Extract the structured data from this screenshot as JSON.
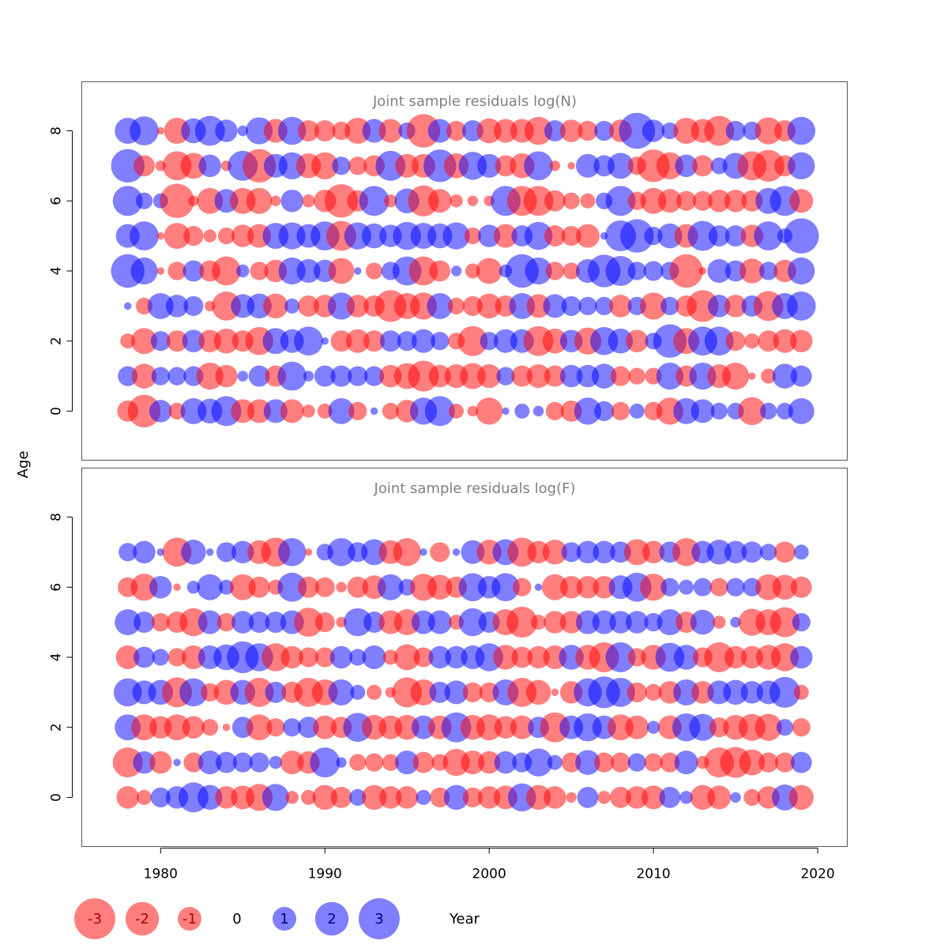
{
  "colors": {
    "negative": "#ff0000",
    "positive": "#0000ff",
    "opacity": 0.5,
    "frame": "#555555"
  },
  "chart_data": [
    {
      "type": "bubble",
      "title": "Joint sample residuals log(N)",
      "xlabel": "Year",
      "ylabel": "Age",
      "xlim": [
        1975.2,
        2021.8
      ],
      "ylim": [
        -1.4,
        9.4
      ],
      "yticks": [
        0,
        2,
        4,
        6,
        8
      ],
      "years": [
        1978,
        1979,
        1980,
        1981,
        1982,
        1983,
        1984,
        1985,
        1986,
        1987,
        1988,
        1989,
        1990,
        1991,
        1992,
        1993,
        1994,
        1995,
        1996,
        1997,
        1998,
        1999,
        2000,
        2001,
        2002,
        2003,
        2004,
        2005,
        2006,
        2007,
        2008,
        2009,
        2010,
        2011,
        2012,
        2013,
        2014,
        2015,
        2016,
        2017,
        2018,
        2019
      ],
      "residuals": [
        {
          "age": 8,
          "values": [
            1.2,
            1.5,
            -0.1,
            -1.2,
            1.1,
            1.6,
            0.9,
            0.2,
            1.3,
            -1.0,
            1.4,
            -0.8,
            -0.8,
            -0.6,
            -1.2,
            1.0,
            -1.0,
            0.5,
            -2.0,
            1.0,
            -0.7,
            0.8,
            -1.1,
            -1.0,
            -1.0,
            -1.4,
            0.8,
            -0.9,
            -0.7,
            0.7,
            -0.9,
            2.3,
            0.9,
            0.5,
            -1.2,
            -1.0,
            -1.6,
            0.7,
            0.6,
            -1.3,
            -0.8,
            1.4
          ]
        },
        {
          "age": 7,
          "values": [
            2.0,
            -0.8,
            -0.2,
            -1.5,
            -1.2,
            0.9,
            -0.2,
            1.6,
            -2.0,
            1.0,
            1.3,
            -1.1,
            -1.3,
            0.6,
            -0.6,
            -0.8,
            1.6,
            -1.0,
            -1.0,
            1.9,
            -1.1,
            1.4,
            1.0,
            -0.8,
            -1.1,
            1.5,
            -0.2,
            -0.1,
            1.0,
            0.8,
            1.2,
            -0.6,
            -1.9,
            -1.3,
            0.9,
            -0.8,
            0.5,
            1.2,
            -1.5,
            -1.8,
            -0.8,
            1.3
          ]
        },
        {
          "age": 6,
          "values": [
            1.6,
            0.5,
            0.4,
            -2.1,
            -0.2,
            -1.2,
            1.0,
            -1.2,
            -1.2,
            -0.2,
            0.9,
            -0.3,
            -0.9,
            -2.0,
            -0.8,
            1.6,
            -0.3,
            1.1,
            -1.7,
            -1.0,
            -0.3,
            -0.2,
            -0.2,
            1.6,
            -1.6,
            -1.6,
            -0.8,
            -0.5,
            -0.4,
            0.5,
            1.6,
            -0.6,
            -1.2,
            -1.0,
            -0.7,
            -0.7,
            -0.9,
            -0.9,
            -0.8,
            1.2,
            1.6,
            -1.0
          ]
        },
        {
          "age": 5,
          "values": [
            1.0,
            1.5,
            -0.1,
            -1.2,
            -0.7,
            -0.3,
            -0.5,
            -0.9,
            -1.0,
            1.2,
            1.3,
            1.0,
            1.5,
            -1.6,
            1.3,
            1.1,
            0.9,
            1.4,
            1.2,
            1.1,
            1.3,
            -0.5,
            0.9,
            -1.0,
            0.8,
            1.4,
            -0.8,
            -0.7,
            -1.0,
            0.1,
            1.7,
            2.0,
            0.6,
            1.1,
            -1.0,
            1.6,
            0.8,
            0.8,
            -0.9,
            1.5,
            0.4,
            2.2
          ]
        },
        {
          "age": 4,
          "values": [
            2.0,
            1.3,
            -0.1,
            -0.6,
            0.8,
            -0.8,
            -1.5,
            0.3,
            -0.6,
            -0.9,
            1.3,
            1.0,
            0.9,
            -1.2,
            0.1,
            -0.5,
            0.6,
            1.5,
            -1.5,
            -0.8,
            0.2,
            -0.4,
            -1.2,
            0.3,
            2.0,
            1.3,
            -0.6,
            -0.5,
            1.0,
            1.9,
            1.6,
            0.6,
            0.7,
            0.6,
            -2.0,
            -0.1,
            1.0,
            0.8,
            -1.1,
            0.6,
            -0.9,
            1.3
          ]
        },
        {
          "age": 3,
          "values": [
            0.1,
            -0.5,
            1.2,
            0.9,
            0.7,
            -0.2,
            -1.5,
            1.0,
            1.1,
            -1.1,
            0.4,
            -0.8,
            -0.9,
            1.3,
            -0.9,
            -0.8,
            -1.8,
            -1.2,
            -1.3,
            1.2,
            -0.5,
            -0.7,
            -1.1,
            -0.8,
            1.2,
            -1.0,
            1.0,
            0.7,
            0.6,
            0.6,
            -0.9,
            0.6,
            -1.3,
            0.6,
            -0.8,
            -1.8,
            0.9,
            -0.9,
            0.8,
            -1.6,
            1.2,
            1.5
          ]
        },
        {
          "age": 2,
          "values": [
            -0.4,
            -1.2,
            0.7,
            -0.8,
            0.9,
            -0.9,
            -1.1,
            -0.8,
            -1.4,
            1.2,
            1.0,
            1.5,
            0.1,
            -0.8,
            -1.0,
            -0.8,
            0.8,
            0.7,
            1.0,
            0.6,
            -0.5,
            -1.6,
            0.6,
            1.0,
            1.0,
            -1.6,
            -1.1,
            0.9,
            -1.3,
            1.4,
            1.1,
            -0.9,
            0.5,
            2.0,
            -1.2,
            1.5,
            1.5,
            -0.7,
            -0.4,
            -0.8,
            -1.0,
            -0.9
          ]
        },
        {
          "age": 1,
          "values": [
            0.7,
            -1.1,
            0.6,
            0.6,
            0.7,
            -1.3,
            -0.9,
            0.2,
            0.8,
            -0.8,
            1.5,
            0.2,
            0.8,
            0.8,
            0.7,
            0.7,
            -0.9,
            -1.2,
            -1.7,
            -0.9,
            -1.0,
            -1.2,
            -1.0,
            0.6,
            -0.8,
            -1.0,
            -0.8,
            0.9,
            0.9,
            1.1,
            -0.7,
            -0.5,
            -0.5,
            1.3,
            -0.8,
            1.3,
            -1.0,
            -1.3,
            -0.1,
            -0.4,
            1.1,
            0.8
          ]
        },
        {
          "age": 0,
          "values": [
            -0.8,
            -1.9,
            0.9,
            -0.5,
            1.2,
            1.1,
            1.6,
            -1.0,
            -1.0,
            1.0,
            -1.0,
            -0.3,
            -0.4,
            1.2,
            -0.6,
            0.1,
            -0.5,
            -0.9,
            1.3,
            1.6,
            -0.4,
            -0.2,
            -1.3,
            0.1,
            0.4,
            0.2,
            -0.6,
            -0.8,
            1.3,
            0.7,
            -0.6,
            0.4,
            -0.6,
            -1.3,
            1.2,
            1.0,
            0.5,
            0.5,
            -1.4,
            0.5,
            0.5,
            1.2
          ]
        }
      ]
    },
    {
      "type": "bubble",
      "title": "Joint sample residuals log(F)",
      "xlabel": "Year",
      "ylabel": "Age",
      "xlim": [
        1975.2,
        2021.8
      ],
      "ylim": [
        -1.4,
        9.4
      ],
      "yticks": [
        0,
        2,
        4,
        6,
        8
      ],
      "xticks": [
        1980,
        1990,
        2000,
        2010,
        2020
      ],
      "years": [
        1978,
        1979,
        1980,
        1981,
        1982,
        1983,
        1984,
        1985,
        1986,
        1987,
        1988,
        1989,
        1990,
        1991,
        1992,
        1993,
        1994,
        1995,
        1996,
        1997,
        1998,
        1999,
        2000,
        2001,
        2002,
        2003,
        2004,
        2005,
        2006,
        2007,
        2008,
        2009,
        2010,
        2011,
        2012,
        2013,
        2014,
        2015,
        2016,
        2017,
        2018,
        2019
      ],
      "residuals": [
        {
          "age": 7,
          "values": [
            0.6,
            0.9,
            0.1,
            -1.5,
            1.1,
            0.1,
            0.7,
            0.9,
            -1.0,
            -1.5,
            1.4,
            -0.1,
            0.5,
            1.4,
            0.7,
            1.2,
            -1.0,
            -1.4,
            0.1,
            -0.7,
            0.1,
            1.0,
            -1.1,
            1.2,
            -1.5,
            -0.9,
            -1.1,
            0.7,
            0.9,
            0.9,
            0.8,
            -1.2,
            -0.9,
            0.8,
            -1.4,
            0.9,
            1.1,
            0.9,
            0.8,
            0.5,
            -0.8,
            0.4
          ]
        },
        {
          "age": 6,
          "values": [
            -0.7,
            -1.3,
            0.9,
            -0.1,
            0.3,
            1.2,
            0.4,
            -1.2,
            -0.8,
            -0.4,
            1.5,
            -0.8,
            -0.7,
            -0.2,
            -0.8,
            -1.0,
            1.2,
            0.5,
            -1.3,
            -1.1,
            -0.8,
            1.4,
            0.9,
            1.4,
            -0.6,
            0.1,
            -1.2,
            -0.9,
            -0.9,
            -0.9,
            1.0,
            1.5,
            -1.3,
            0.6,
            0.4,
            0.6,
            -0.6,
            0.6,
            0.6,
            -1.2,
            -1.1,
            -0.8
          ]
        },
        {
          "age": 5,
          "values": [
            1.2,
            0.8,
            -0.6,
            -0.8,
            -1.4,
            1.0,
            -0.6,
            0.9,
            0.8,
            0.8,
            1.0,
            -1.5,
            -0.7,
            -0.2,
            1.4,
            0.8,
            -1.0,
            -1.2,
            1.0,
            1.0,
            -0.4,
            1.4,
            0.8,
            -1.2,
            -1.7,
            -0.4,
            -0.9,
            -0.9,
            1.0,
            1.0,
            0.9,
            0.9,
            0.6,
            1.2,
            -0.8,
            1.1,
            -0.3,
            0.2,
            -1.3,
            -1.2,
            -1.6,
            0.6
          ]
        },
        {
          "age": 4,
          "values": [
            -1.0,
            0.8,
            0.5,
            -0.6,
            -1.0,
            1.0,
            1.2,
            1.8,
            1.4,
            -1.4,
            -0.9,
            -0.7,
            -0.7,
            0.9,
            0.5,
            1.0,
            -0.4,
            -1.2,
            -0.7,
            0.9,
            0.9,
            1.0,
            1.4,
            -1.1,
            -0.8,
            -0.9,
            -1.0,
            1.1,
            -1.1,
            -1.6,
            1.6,
            -0.6,
            -1.1,
            1.5,
            1.1,
            -0.7,
            -1.6,
            -0.9,
            -0.9,
            -1.1,
            -1.4,
            0.9
          ]
        },
        {
          "age": 3,
          "values": [
            1.4,
            1.0,
            1.1,
            -1.6,
            1.4,
            -0.6,
            -1.1,
            1.1,
            -1.5,
            0.8,
            -0.8,
            -1.5,
            -1.2,
            1.2,
            0.4,
            -0.4,
            -0.2,
            -1.6,
            -1.2,
            0.8,
            1.0,
            -0.7,
            -0.7,
            1.2,
            -1.5,
            -1.1,
            -0.1,
            -0.9,
            1.4,
            1.8,
            1.5,
            -0.7,
            -0.5,
            -0.9,
            1.2,
            -0.9,
            1.0,
            1.1,
            0.9,
            1.0,
            1.7,
            -0.4
          ]
        },
        {
          "age": 2,
          "values": [
            1.2,
            -1.2,
            -0.9,
            -1.2,
            -0.9,
            -0.5,
            -0.1,
            0.8,
            -1.2,
            -0.6,
            0.6,
            0.8,
            -1.0,
            -0.8,
            1.5,
            -1.1,
            -1.0,
            -1.1,
            1.0,
            -1.0,
            1.6,
            -1.1,
            -1.2,
            -0.9,
            -1.0,
            0.8,
            -1.6,
            1.0,
            1.4,
            1.0,
            -1.2,
            -1.0,
            0.3,
            -1.0,
            1.4,
            1.3,
            -0.7,
            -1.1,
            -1.3,
            -1.3,
            0.5,
            -0.6
          ]
        },
        {
          "age": 1,
          "values": [
            -1.6,
            0.9,
            -0.9,
            0.1,
            -0.7,
            1.0,
            0.8,
            0.7,
            0.7,
            0.3,
            -1.0,
            -0.9,
            1.6,
            0.2,
            -0.5,
            -0.6,
            -0.5,
            1.0,
            -0.8,
            -0.5,
            -1.3,
            -1.0,
            -0.9,
            0.9,
            0.7,
            1.4,
            0.4,
            -0.7,
            1.1,
            -0.7,
            -0.7,
            0.6,
            -0.6,
            -0.7,
            1.0,
            -0.3,
            -1.6,
            -1.7,
            -1.2,
            -0.7,
            -0.7,
            0.8
          ]
        },
        {
          "age": 0,
          "values": [
            -0.9,
            -0.4,
            0.7,
            0.9,
            1.6,
            1.1,
            -0.9,
            -1.0,
            -1.3,
            1.3,
            -0.3,
            -0.4,
            -1.1,
            -0.8,
            0.5,
            -1.1,
            -0.9,
            -0.9,
            0.4,
            -0.7,
            1.1,
            -0.7,
            -0.9,
            -1.0,
            1.4,
            -1.1,
            -0.9,
            -0.2,
            0.8,
            -0.3,
            -0.8,
            -0.9,
            -1.0,
            0.8,
            0.3,
            -1.1,
            -1.0,
            0.2,
            -0.5,
            -0.9,
            1.2,
            -1.1
          ]
        }
      ]
    }
  ],
  "legend": {
    "items": [
      {
        "label": "-3",
        "value": -3
      },
      {
        "label": "-2",
        "value": -2
      },
      {
        "label": "-1",
        "value": -1
      },
      {
        "label": "0",
        "value": 0
      },
      {
        "label": "1",
        "value": 1
      },
      {
        "label": "2",
        "value": 2
      },
      {
        "label": "3",
        "value": 3
      }
    ],
    "caption": "Year"
  }
}
